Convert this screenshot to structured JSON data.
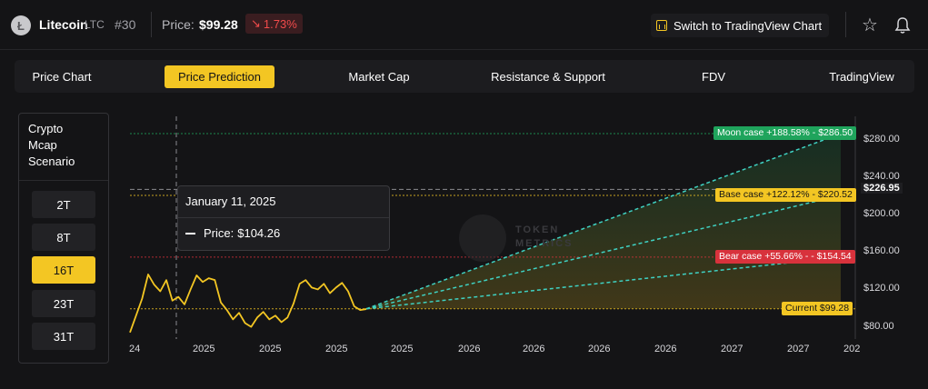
{
  "header": {
    "coin_logo_letter": "Ł",
    "coin_name": "Litecoin",
    "coin_symbol": "LTC",
    "rank": "#30",
    "price_label": "Price:",
    "price": "$99.28",
    "change": "1.73%",
    "change_icon": "arrow-down-right-icon",
    "tv_button": "Switch to TradingView Chart",
    "negative_color": "#f24b4b",
    "accent_color": "#f3c623"
  },
  "tabs": [
    {
      "label": "Price Chart",
      "active": false
    },
    {
      "label": "Price Prediction",
      "active": true
    },
    {
      "label": "Market Cap",
      "active": false
    },
    {
      "label": "Resistance & Support",
      "active": false
    },
    {
      "label": "FDV",
      "active": false
    },
    {
      "label": "TradingView",
      "active": false
    }
  ],
  "scenario": {
    "title": "Crypto\nMcap\nScenario",
    "options": [
      "2T",
      "8T",
      "16T",
      "23T",
      "31T"
    ],
    "selected": "16T"
  },
  "tooltip": {
    "date": "January 11, 2025",
    "price_label": "Price:",
    "price_value": "$104.26"
  },
  "watermark": {
    "line1": "TOKEN",
    "line2": "METRICS"
  },
  "chart_data": {
    "type": "line",
    "y_tick_labels": [
      "$280.00",
      "$240.00",
      "$200.00",
      "$160.00",
      "$120.00",
      "$80.00"
    ],
    "y_ticks": [
      280,
      240,
      200,
      160,
      120,
      80
    ],
    "ylim": [
      67,
      305
    ],
    "current_price_label": "$226.95",
    "current_price_line": 226.95,
    "x_tick_labels": [
      "24",
      "2025",
      "2025",
      "2025",
      "2025",
      "2026",
      "2026",
      "2026",
      "2026",
      "2027",
      "2027",
      "202"
    ],
    "history": [
      74,
      92,
      110,
      136,
      125,
      118,
      130,
      108,
      112,
      104,
      120,
      135,
      128,
      132,
      130,
      106,
      98,
      88,
      95,
      84,
      80,
      90,
      96,
      88,
      92,
      85,
      90,
      105,
      126,
      130,
      122,
      120,
      126,
      116,
      122,
      127,
      118,
      102,
      98,
      99
    ],
    "cases": [
      {
        "name": "Moon case",
        "label": "Moon case +188.58% - $286.50",
        "target": 286.5,
        "color": "#1fa45c"
      },
      {
        "name": "Base case",
        "label": "Base case +122.12% - $220.52",
        "target": 220.52,
        "color": "#f3c623"
      },
      {
        "name": "Bear case",
        "label": "Bear case +55.66% - - $154.54",
        "target": 154.54,
        "color": "#d8323c"
      }
    ],
    "current": {
      "label": "Current $99.28",
      "value": 99.28
    },
    "projection_color": "#3fd1c2",
    "line_color": "#f3c623",
    "grid": false
  }
}
